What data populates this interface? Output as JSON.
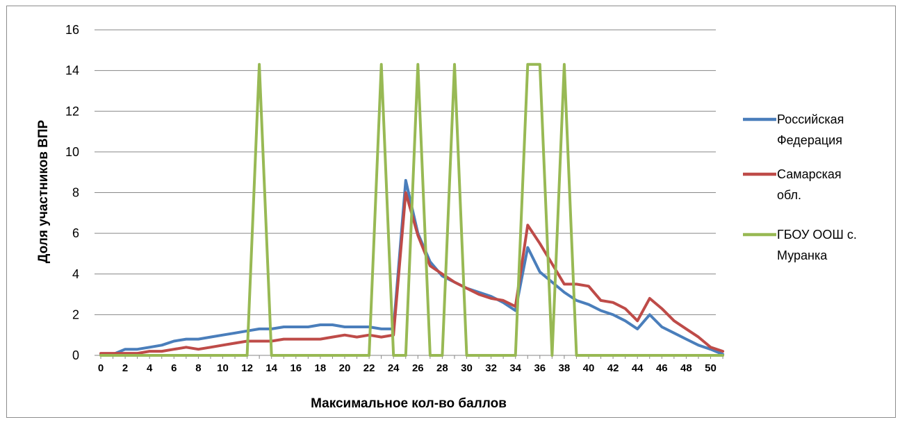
{
  "chart_data": {
    "type": "line",
    "title": "",
    "xlabel": "Максимальное кол-во баллов",
    "ylabel": "Доля участников ВПР",
    "xlim": [
      0,
      51
    ],
    "ylim": [
      0,
      16
    ],
    "yticks": [
      0,
      2,
      4,
      6,
      8,
      10,
      12,
      14,
      16
    ],
    "xticks": [
      0,
      2,
      4,
      6,
      8,
      10,
      12,
      14,
      16,
      18,
      20,
      22,
      24,
      26,
      28,
      30,
      32,
      34,
      36,
      38,
      40,
      42,
      44,
      46,
      48,
      50
    ],
    "grid": "horizontal",
    "legend_position": "right",
    "x": [
      0,
      1,
      2,
      3,
      4,
      5,
      6,
      7,
      8,
      9,
      10,
      11,
      12,
      13,
      14,
      15,
      16,
      17,
      18,
      19,
      20,
      21,
      22,
      23,
      24,
      25,
      26,
      27,
      28,
      29,
      30,
      31,
      32,
      33,
      34,
      35,
      36,
      37,
      38,
      39,
      40,
      41,
      42,
      43,
      44,
      45,
      46,
      47,
      48,
      49,
      50,
      51
    ],
    "series": [
      {
        "name": "Российская Федерация",
        "color": "#4a7ebb",
        "values": [
          0.05,
          0.05,
          0.3,
          0.3,
          0.4,
          0.5,
          0.7,
          0.8,
          0.8,
          0.9,
          1.0,
          1.1,
          1.2,
          1.3,
          1.3,
          1.4,
          1.4,
          1.4,
          1.5,
          1.5,
          1.4,
          1.4,
          1.4,
          1.3,
          1.3,
          8.6,
          6.0,
          4.6,
          3.9,
          3.6,
          3.3,
          3.1,
          2.9,
          2.6,
          2.2,
          5.3,
          4.1,
          3.6,
          3.1,
          2.7,
          2.5,
          2.2,
          2.0,
          1.7,
          1.3,
          2.0,
          1.4,
          1.1,
          0.8,
          0.5,
          0.3,
          0.05
        ]
      },
      {
        "name": "Самарская обл.",
        "color": "#be4b48",
        "values": [
          0.1,
          0.1,
          0.1,
          0.1,
          0.2,
          0.2,
          0.3,
          0.4,
          0.3,
          0.4,
          0.5,
          0.6,
          0.7,
          0.7,
          0.7,
          0.8,
          0.8,
          0.8,
          0.8,
          0.9,
          1.0,
          0.9,
          1.0,
          0.9,
          1.0,
          8.0,
          5.9,
          4.4,
          4.0,
          3.6,
          3.3,
          3.0,
          2.8,
          2.7,
          2.4,
          6.4,
          5.5,
          4.5,
          3.5,
          3.5,
          3.4,
          2.7,
          2.6,
          2.3,
          1.7,
          2.8,
          2.3,
          1.7,
          1.3,
          0.9,
          0.4,
          0.2
        ]
      },
      {
        "name": "ГБОУ ООШ с. Муранка",
        "color": "#98b954",
        "values": [
          0,
          0,
          0,
          0,
          0,
          0,
          0,
          0,
          0,
          0,
          0,
          0,
          0,
          14.3,
          0,
          0,
          0,
          0,
          0,
          0,
          0,
          0,
          0,
          14.3,
          0,
          0,
          14.3,
          0,
          0,
          14.3,
          0,
          0,
          0,
          0,
          0,
          14.3,
          14.3,
          0,
          14.3,
          0,
          0,
          0,
          0,
          0,
          0,
          0,
          0,
          0,
          0,
          0,
          0,
          0
        ]
      }
    ]
  },
  "legend": [
    {
      "line1": "Российская",
      "line2": "Федерация"
    },
    {
      "line1": "Самарская",
      "line2": "обл."
    },
    {
      "line1": "ГБОУ ООШ с.",
      "line2": "Муранка"
    }
  ]
}
